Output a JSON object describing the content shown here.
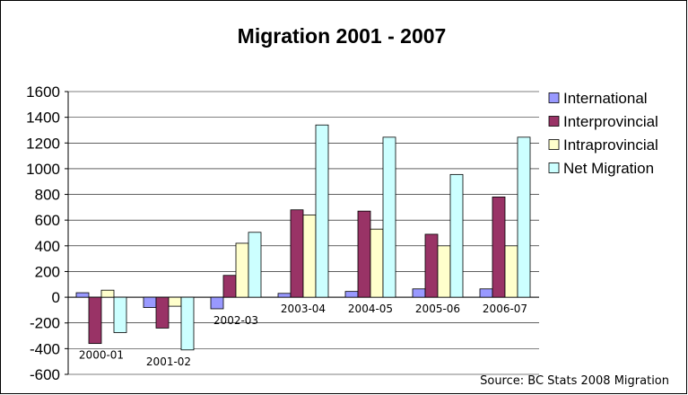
{
  "chart_data": {
    "type": "bar",
    "title": "Migration 2001 - 2007",
    "xlabel": "",
    "ylabel": "",
    "categories": [
      "2000-01",
      "2001-02",
      "2002-03",
      "2003-04",
      "2004-05",
      "2005-06",
      "2006-07"
    ],
    "series": [
      {
        "name": "International",
        "color": "#9999FF",
        "values": [
          35,
          -80,
          -90,
          30,
          45,
          65,
          65
        ]
      },
      {
        "name": "Interprovincial",
        "color": "#993366",
        "values": [
          -360,
          -240,
          170,
          680,
          670,
          490,
          780
        ]
      },
      {
        "name": "Intraprovincial",
        "color": "#FFFFCC",
        "values": [
          55,
          -70,
          420,
          640,
          530,
          400,
          400
        ]
      },
      {
        "name": "Net Migration",
        "color": "#CCFFFF",
        "values": [
          -275,
          -410,
          505,
          1340,
          1245,
          955,
          1245
        ]
      }
    ],
    "ylim": [
      -600,
      1600
    ],
    "yticks": [
      -600,
      -400,
      -200,
      0,
      200,
      400,
      600,
      800,
      1000,
      1200,
      1400,
      1600
    ],
    "grid": true,
    "legend": "right",
    "source": "Source: BC Stats 2008 Migration"
  }
}
